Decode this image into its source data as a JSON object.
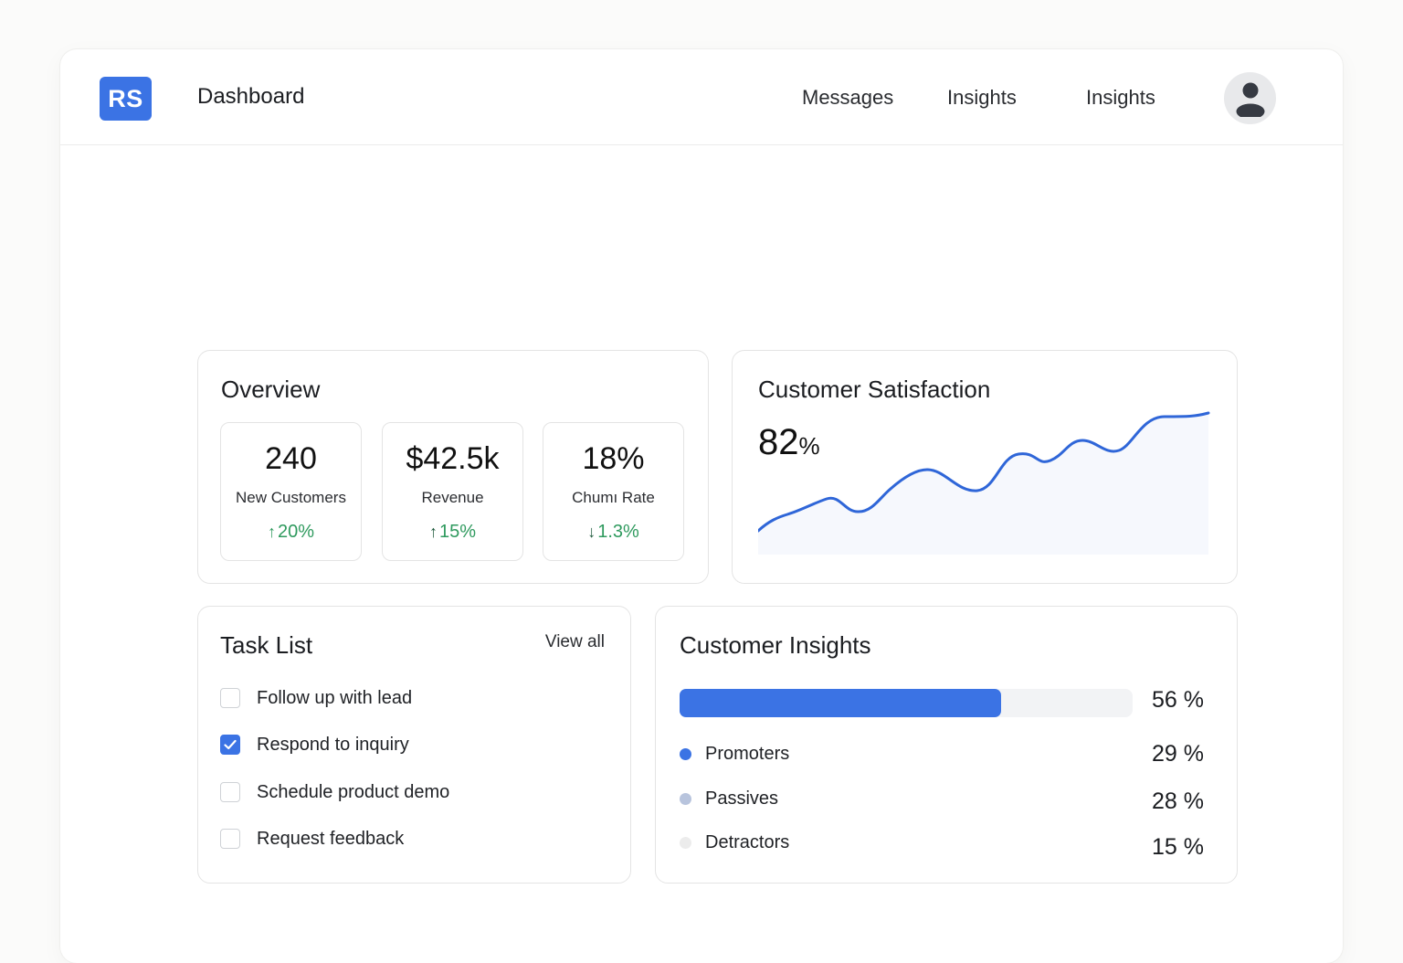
{
  "header": {
    "logo_text": "RS",
    "title": "Dashboard",
    "nav": [
      "Messages",
      "Insights",
      "Insights"
    ],
    "avatar_icon": "user-avatar-icon"
  },
  "overview": {
    "title": "Overview",
    "stats": [
      {
        "value": "240",
        "label": "New Customers",
        "delta": "20%",
        "direction": "up"
      },
      {
        "value": "$42.5k",
        "label": "Revenue",
        "delta": "15%",
        "direction": "up"
      },
      {
        "value": "18%",
        "label": "Chumı Rate",
        "delta": "1.3%",
        "direction": "down"
      }
    ]
  },
  "satisfaction": {
    "title": "Customer Satisfaction",
    "value": "82",
    "unit": "%"
  },
  "tasks": {
    "title": "Task List",
    "view_all": "View all",
    "items": [
      {
        "label": "Follow up with lead",
        "checked": false
      },
      {
        "label": "Respond to inquiry",
        "checked": true
      },
      {
        "label": "Schedule product demo",
        "checked": false
      },
      {
        "label": "Request feedback",
        "checked": false
      }
    ]
  },
  "insights": {
    "title": "Customer Insights",
    "bar_percent_label": "56 %",
    "bar_fraction": 0.56,
    "segments": [
      {
        "label": "Promoters",
        "percent": "29 %",
        "color": "#3b73e4"
      },
      {
        "label": "Passives",
        "percent": "28 %",
        "color": "#b8c4dd"
      },
      {
        "label": "Detractors",
        "percent": "15 %",
        "color": "#ececec"
      }
    ]
  },
  "colors": {
    "accent": "#3b73e4",
    "positive": "#2f9a5e"
  }
}
